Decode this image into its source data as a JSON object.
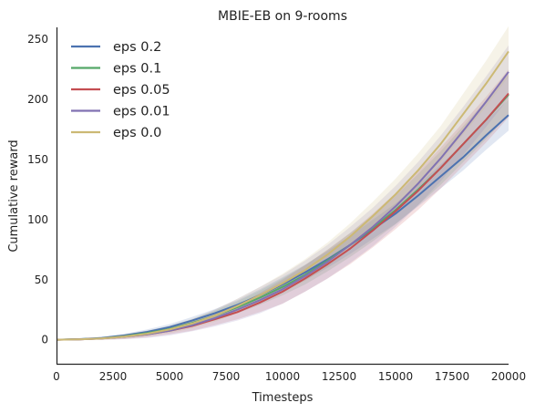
{
  "chart_data": {
    "type": "line",
    "title": "MBIE-EB on 9-rooms",
    "xlabel": "Timesteps",
    "ylabel": "Cumulative reward",
    "xlim": [
      0,
      20000
    ],
    "ylim": [
      -20,
      260
    ],
    "xticks": [
      0,
      2500,
      5000,
      7500,
      10000,
      12500,
      15000,
      17500,
      20000
    ],
    "yticks": [
      0,
      50,
      100,
      150,
      200,
      250
    ],
    "grid": false,
    "legend_position": "top-left",
    "x": [
      0,
      1000,
      2000,
      3000,
      4000,
      5000,
      6000,
      7000,
      8000,
      9000,
      10000,
      11000,
      12000,
      13000,
      14000,
      15000,
      16000,
      17000,
      18000,
      19000,
      20000
    ],
    "series": [
      {
        "name": "eps 0.2",
        "color": "#4c72b0",
        "values": [
          0,
          0.5,
          1.5,
          3.5,
          6.5,
          10.5,
          16,
          22,
          29,
          37,
          46,
          56,
          67,
          79,
          92,
          105,
          120,
          136,
          152,
          170,
          187
        ],
        "spread": [
          0,
          0.5,
          1,
          1.5,
          2,
          2.5,
          3,
          3.5,
          4,
          5,
          6,
          6.5,
          7,
          7.5,
          8,
          8.5,
          9,
          10,
          11,
          12,
          13
        ]
      },
      {
        "name": "eps 0.1",
        "color": "#55a868",
        "values": [
          0,
          0.4,
          1.2,
          3,
          5.5,
          9,
          14,
          20,
          27,
          35,
          44,
          54,
          66,
          79,
          93,
          108,
          125,
          143,
          163,
          183,
          204
        ],
        "spread": [
          0,
          0.5,
          1,
          1.5,
          2,
          2.5,
          3,
          4,
          5,
          6,
          7,
          8,
          9,
          10,
          11,
          12,
          13,
          14,
          15,
          16,
          17
        ]
      },
      {
        "name": "eps 0.05",
        "color": "#c44e52",
        "values": [
          0,
          0.3,
          1,
          2.5,
          4.5,
          7.5,
          11.5,
          17,
          23,
          31,
          40,
          51,
          63,
          76,
          91,
          107,
          124,
          143,
          163,
          183,
          205
        ],
        "spread": [
          0,
          0.5,
          1,
          2,
          2.5,
          3,
          4,
          5,
          6,
          8,
          10,
          11,
          12,
          13,
          14,
          15,
          16,
          17,
          18,
          19,
          20
        ]
      },
      {
        "name": "eps 0.01",
        "color": "#8172b2",
        "values": [
          0,
          0.3,
          1,
          2.5,
          4.5,
          7.5,
          12,
          18,
          25,
          33,
          42,
          53,
          65,
          79,
          94,
          111,
          130,
          151,
          174,
          198,
          223
        ],
        "spread": [
          0,
          0.5,
          1,
          2,
          3,
          4,
          5,
          7,
          9,
          11,
          12,
          13,
          14,
          15,
          16,
          17,
          18,
          19,
          20,
          21,
          22
        ]
      },
      {
        "name": "eps 0.0",
        "color": "#ccb974",
        "values": [
          0,
          0.3,
          1,
          2.5,
          5,
          8.5,
          13.5,
          20,
          28,
          37,
          47,
          58,
          71,
          86,
          103,
          121,
          141,
          163,
          188,
          213,
          240
        ],
        "spread": [
          0,
          0.5,
          1,
          1.5,
          2,
          3,
          4,
          5,
          6,
          7,
          8,
          9,
          10,
          11,
          12,
          13,
          14,
          15,
          17,
          19,
          21
        ]
      }
    ]
  }
}
